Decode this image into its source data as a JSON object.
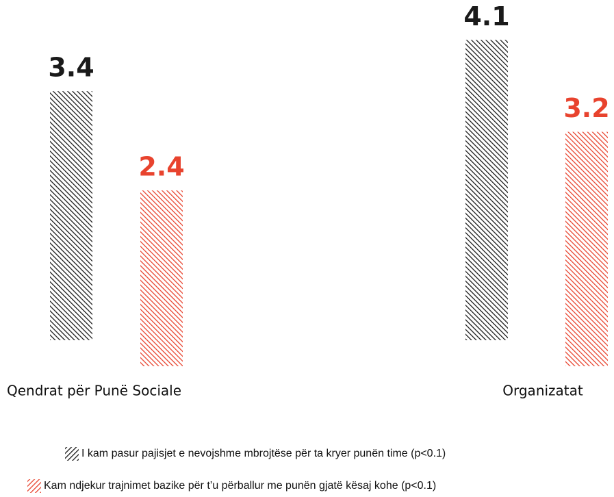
{
  "chart_data": {
    "type": "bar",
    "categories": [
      "Qendrat për Punë Sociale",
      "Organizatat"
    ],
    "series": [
      {
        "name": "I kam pasur pajisjet e nevojshme mbrojtëse për ta kryer punën time (p<0.1)",
        "color": "#1a1a1a",
        "values": [
          3.4,
          4.1
        ]
      },
      {
        "name": "Kam ndjekur trajnimet bazike për t’u përballur me punën gjatë kësaj kohe (p<0.1)",
        "color": "#e8432e",
        "values": [
          2.4,
          3.2
        ]
      }
    ]
  }
}
